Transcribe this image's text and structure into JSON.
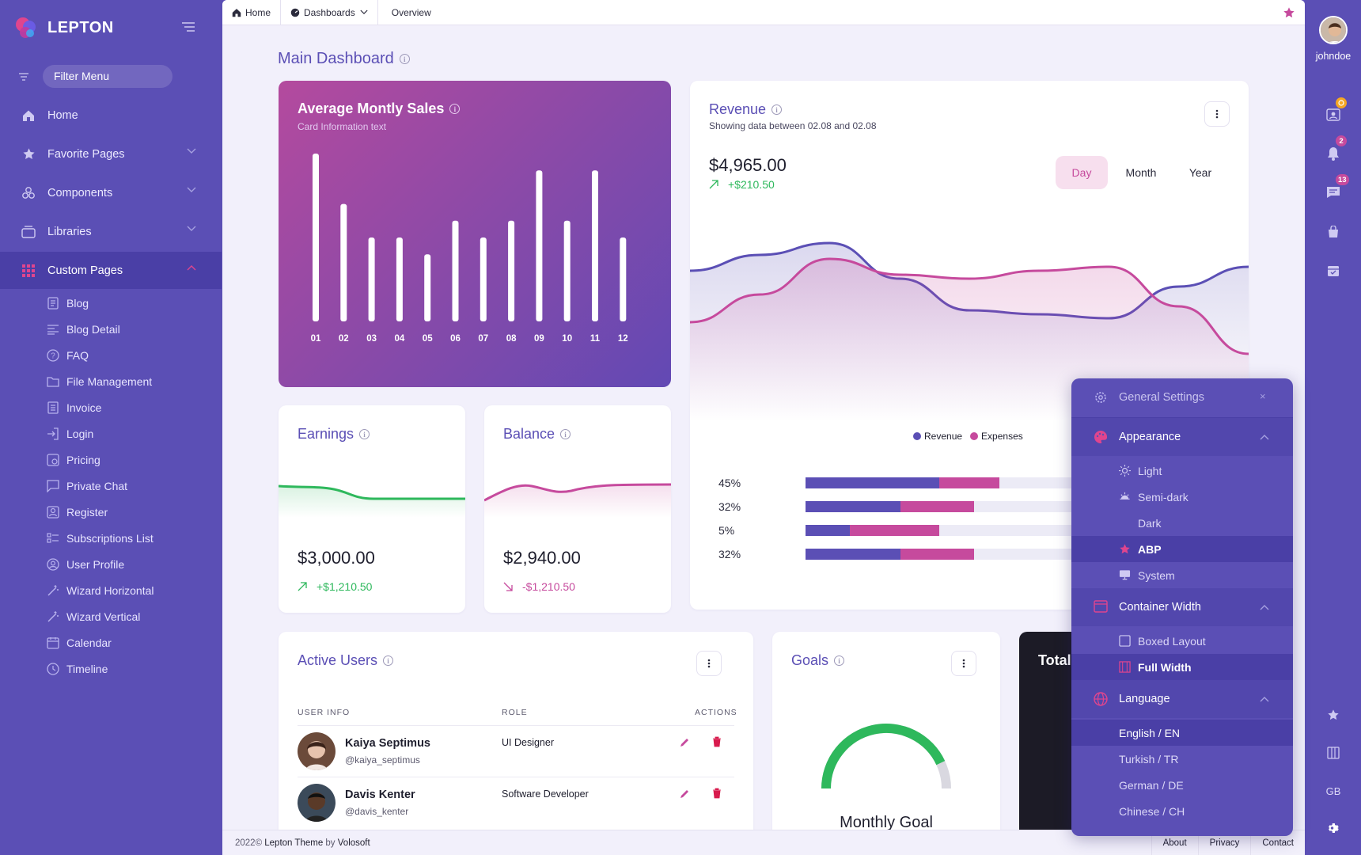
{
  "app": {
    "name": "LEPTON"
  },
  "sidebar": {
    "filter_placeholder": "Filter Menu",
    "items": [
      {
        "label": "Home"
      },
      {
        "label": "Favorite Pages"
      },
      {
        "label": "Components"
      },
      {
        "label": "Libraries"
      },
      {
        "label": "Custom Pages"
      }
    ],
    "sub_items": [
      {
        "label": "Blog"
      },
      {
        "label": "Blog Detail"
      },
      {
        "label": "FAQ"
      },
      {
        "label": "File Management"
      },
      {
        "label": "Invoice"
      },
      {
        "label": "Login"
      },
      {
        "label": "Pricing"
      },
      {
        "label": "Private Chat"
      },
      {
        "label": "Register"
      },
      {
        "label": "Subscriptions List"
      },
      {
        "label": "User Profile"
      },
      {
        "label": "Wizard Horizontal"
      },
      {
        "label": "Wizard Vertical"
      },
      {
        "label": "Calendar"
      },
      {
        "label": "Timeline"
      }
    ]
  },
  "breadcrumb": {
    "home": "Home",
    "dashboards": "Dashboards",
    "current": "Overview"
  },
  "page": {
    "title": "Main Dashboard"
  },
  "sales_card": {
    "title": "Average Montly Sales",
    "subtitle": "Card Information text"
  },
  "chart_data": [
    {
      "type": "bar",
      "title": "Average Montly Sales",
      "categories": [
        "01",
        "02",
        "03",
        "04",
        "05",
        "06",
        "07",
        "08",
        "09",
        "10",
        "11",
        "12"
      ],
      "values": [
        100,
        70,
        50,
        50,
        40,
        60,
        50,
        60,
        90,
        60,
        90,
        50
      ],
      "ylim": [
        0,
        100
      ]
    },
    {
      "type": "area",
      "title": "Revenue",
      "x": [
        0,
        1,
        2,
        3,
        4,
        5,
        6,
        7,
        8
      ],
      "series": [
        {
          "name": "Revenue",
          "values": [
            52,
            60,
            66,
            48,
            32,
            30,
            28,
            44,
            54
          ]
        },
        {
          "name": "Expenses",
          "values": [
            26,
            40,
            58,
            50,
            48,
            52,
            54,
            34,
            10
          ]
        }
      ],
      "ylim": [
        0,
        80
      ]
    }
  ],
  "revenue": {
    "title": "Revenue",
    "subtitle": "Showing data between 02.08 and 02.08",
    "amount": "$4,965.00",
    "delta": "+$210.50",
    "tabs": [
      "Day",
      "Month",
      "Year"
    ],
    "legend": [
      {
        "label": "Revenue",
        "color": "#5b4fb5"
      },
      {
        "label": "Expenses",
        "color": "#c64a9d"
      }
    ],
    "bars": [
      {
        "label": "45%",
        "primary": 0.345,
        "secondary": 0.155
      },
      {
        "label": "32%",
        "primary": 0.245,
        "secondary": 0.19
      },
      {
        "label": "5%",
        "primary": 0.115,
        "secondary": 0.23
      },
      {
        "label": "32%",
        "primary": 0.245,
        "secondary": 0.19
      }
    ]
  },
  "earnings": {
    "title": "Earnings",
    "amount": "$3,000.00",
    "delta": "+$1,210.50",
    "color": "#2eb85c"
  },
  "balance": {
    "title": "Balance",
    "amount": "$2,940.00",
    "delta": "-$1,210.50",
    "color": "#c64a9d"
  },
  "active_users": {
    "title": "Active Users",
    "columns": [
      "USER INFO",
      "ROLE",
      "ACTIONS"
    ],
    "rows": [
      {
        "name": "Kaiya Septimus",
        "handle": "@kaiya_septimus",
        "role": "UI Designer"
      },
      {
        "name": "Davis Kenter",
        "handle": "@davis_kenter",
        "role": "Software Developer"
      }
    ]
  },
  "goals": {
    "title": "Goals",
    "subtitle": "Monthly Goal",
    "progress": 0.86
  },
  "total_card": {
    "title": "Total"
  },
  "footer": {
    "copyright": "2022© ",
    "theme": "Lepton Theme",
    "by": " by ",
    "company": "Volosoft",
    "links": [
      "About",
      "Privacy",
      "Contact"
    ]
  },
  "user": {
    "name": "johndoe"
  },
  "rail": {
    "notifications": "2",
    "messages": "13",
    "language": "GB"
  },
  "settings": {
    "title": "General Settings",
    "appearance": {
      "label": "Appearance",
      "options": [
        "Light",
        "Semi-dark",
        "Dark",
        "ABP",
        "System"
      ],
      "selected": "ABP"
    },
    "container": {
      "label": "Container Width",
      "options": [
        "Boxed Layout",
        "Full Width"
      ],
      "selected": "Full Width"
    },
    "language": {
      "label": "Language",
      "options": [
        "English / EN",
        "Turkish / TR",
        "German / DE",
        "Chinese / CH"
      ],
      "selected": "English / EN"
    }
  },
  "colors": {
    "primary": "#5b4fb5",
    "accent": "#c64a9d",
    "success": "#2eb85c"
  }
}
